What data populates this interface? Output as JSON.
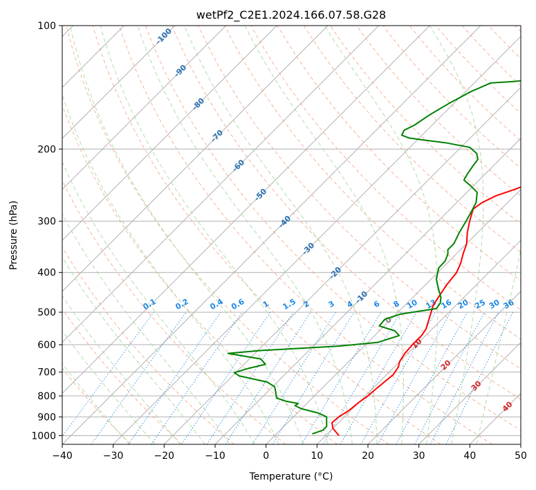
{
  "chart_data": {
    "type": "line",
    "title": "wetPf2_C2E1.2024.166.07.58.G28",
    "xlabel": "Temperature (°C)",
    "ylabel": "Pressure (hPa)",
    "xlim": [
      -40,
      50
    ],
    "ylim": [
      1050,
      100
    ],
    "y_scale": "log",
    "grid": true,
    "x_ticks": [
      "−40",
      "−30",
      "−20",
      "−10",
      "0",
      "10",
      "20",
      "30",
      "40",
      "50"
    ],
    "y_ticks": [
      "100",
      "200",
      "300",
      "400",
      "500",
      "600",
      "700",
      "800",
      "900",
      "1000"
    ],
    "series": [
      {
        "color": "#ff0000",
        "points": [
          [
            12.6,
            1000
          ],
          [
            10.0,
            960
          ],
          [
            8.7,
            930
          ],
          [
            8.9,
            900
          ],
          [
            9.6,
            870
          ],
          [
            10.0,
            830
          ],
          [
            10.5,
            800
          ],
          [
            10.7,
            770
          ],
          [
            11.0,
            740
          ],
          [
            11.3,
            710
          ],
          [
            10.8,
            680
          ],
          [
            10.0,
            660
          ],
          [
            9.4,
            630
          ],
          [
            9.2,
            600
          ],
          [
            9.2,
            570
          ],
          [
            8.8,
            550
          ],
          [
            7.9,
            530
          ],
          [
            6.5,
            500
          ],
          [
            5.5,
            480
          ],
          [
            5.0,
            460
          ],
          [
            4.2,
            430
          ],
          [
            3.7,
            400
          ],
          [
            2.7,
            380
          ],
          [
            1.3,
            360
          ],
          [
            0.0,
            340
          ],
          [
            -2.0,
            320
          ],
          [
            -3.8,
            300
          ],
          [
            -5.5,
            280
          ],
          [
            -5.0,
            270
          ],
          [
            -3.6,
            260
          ],
          [
            -1.0,
            250
          ],
          [
            2.3,
            235
          ],
          [
            5.1,
            222
          ],
          [
            8.8,
            210
          ],
          [
            10.3,
            200
          ],
          [
            12.2,
            190
          ],
          [
            14.5,
            180
          ],
          [
            16.0,
            172
          ],
          [
            17.8,
            165
          ],
          [
            19.3,
            158
          ],
          [
            20.0,
            150
          ],
          [
            20.3,
            140
          ],
          [
            20.0,
            130
          ],
          [
            19.0,
            120
          ],
          [
            18.5,
            110
          ],
          [
            19.5,
            105
          ],
          [
            21.0,
            100
          ]
        ]
      },
      {
        "color": "#008000",
        "points": [
          [
            7.0,
            990
          ],
          [
            8.4,
            970
          ],
          [
            8.4,
            950
          ],
          [
            6.5,
            900
          ],
          [
            4.0,
            880
          ],
          [
            0.0,
            860
          ],
          [
            -1.9,
            845
          ],
          [
            -1.7,
            835
          ],
          [
            -4.4,
            825
          ],
          [
            -7.0,
            810
          ],
          [
            -8.5,
            780
          ],
          [
            -9.6,
            760
          ],
          [
            -12.0,
            740
          ],
          [
            -18.7,
            715
          ],
          [
            -20.3,
            702
          ],
          [
            -18.3,
            685
          ],
          [
            -15.8,
            670
          ],
          [
            -17.8,
            650
          ],
          [
            -25.3,
            630
          ],
          [
            -19.3,
            620
          ],
          [
            -5.0,
            605
          ],
          [
            2.0,
            592
          ],
          [
            4.8,
            570
          ],
          [
            3.0,
            555
          ],
          [
            -1.0,
            540
          ],
          [
            -1.2,
            520
          ],
          [
            0.9,
            505
          ],
          [
            6.8,
            490
          ],
          [
            6.5,
            475
          ],
          [
            5.5,
            460
          ],
          [
            4.0,
            445
          ],
          [
            2.5,
            430
          ],
          [
            1.0,
            415
          ],
          [
            0.0,
            400
          ],
          [
            -0.7,
            390
          ],
          [
            -0.8,
            375
          ],
          [
            -1.7,
            360
          ],
          [
            -2.5,
            352
          ],
          [
            -2.5,
            340
          ],
          [
            -3.6,
            320
          ],
          [
            -4.5,
            300
          ],
          [
            -5.3,
            285
          ],
          [
            -6.2,
            270
          ],
          [
            -8.0,
            255
          ],
          [
            -10.8,
            245
          ],
          [
            -13.0,
            238
          ],
          [
            -13.5,
            230
          ],
          [
            -14.0,
            220
          ],
          [
            -14.3,
            212
          ],
          [
            -15.7,
            205
          ],
          [
            -18.3,
            198
          ],
          [
            -24.0,
            193
          ],
          [
            -29.0,
            190
          ],
          [
            -32.0,
            188
          ],
          [
            -34.0,
            185
          ],
          [
            -34.5,
            180
          ],
          [
            -33.5,
            175
          ],
          [
            -32.5,
            165
          ],
          [
            -31.0,
            155
          ],
          [
            -29.0,
            145
          ],
          [
            -26.8,
            138
          ],
          [
            -23.0,
            137
          ],
          [
            -17.0,
            135
          ],
          [
            -13.6,
            130
          ],
          [
            -12.0,
            125
          ],
          [
            -10.8,
            120
          ],
          [
            -9.0,
            115
          ],
          [
            -7.3,
            110
          ],
          [
            -5.8,
            105
          ],
          [
            -4.5,
            100
          ]
        ]
      }
    ],
    "dry_adiabat_labels": [
      "-100",
      "-90",
      "-80",
      "-70",
      "-60",
      "-50",
      "-40",
      "-30",
      "-20",
      "-10",
      "0",
      "10",
      "20",
      "30",
      "40"
    ],
    "mixing_ratio_labels": [
      "0.1",
      "0.2",
      "0.4",
      "0.6",
      "1",
      "1.5",
      "2",
      "3",
      "4",
      "6",
      "8",
      "10",
      "13",
      "16",
      "20",
      "25",
      "30",
      "36"
    ],
    "colors": {
      "isotherm": "#b0b0b0",
      "grid": "#b0b0b0",
      "dry_adiabat": "#f4a582",
      "moist_adiabat": "#a6d9a0",
      "mixing_ratio": "#1e88e5",
      "dry_label": "#2a6fb0",
      "moist_label_warm": "#d62728",
      "moist_label_zero": "#808080",
      "frame": "#000000"
    }
  }
}
